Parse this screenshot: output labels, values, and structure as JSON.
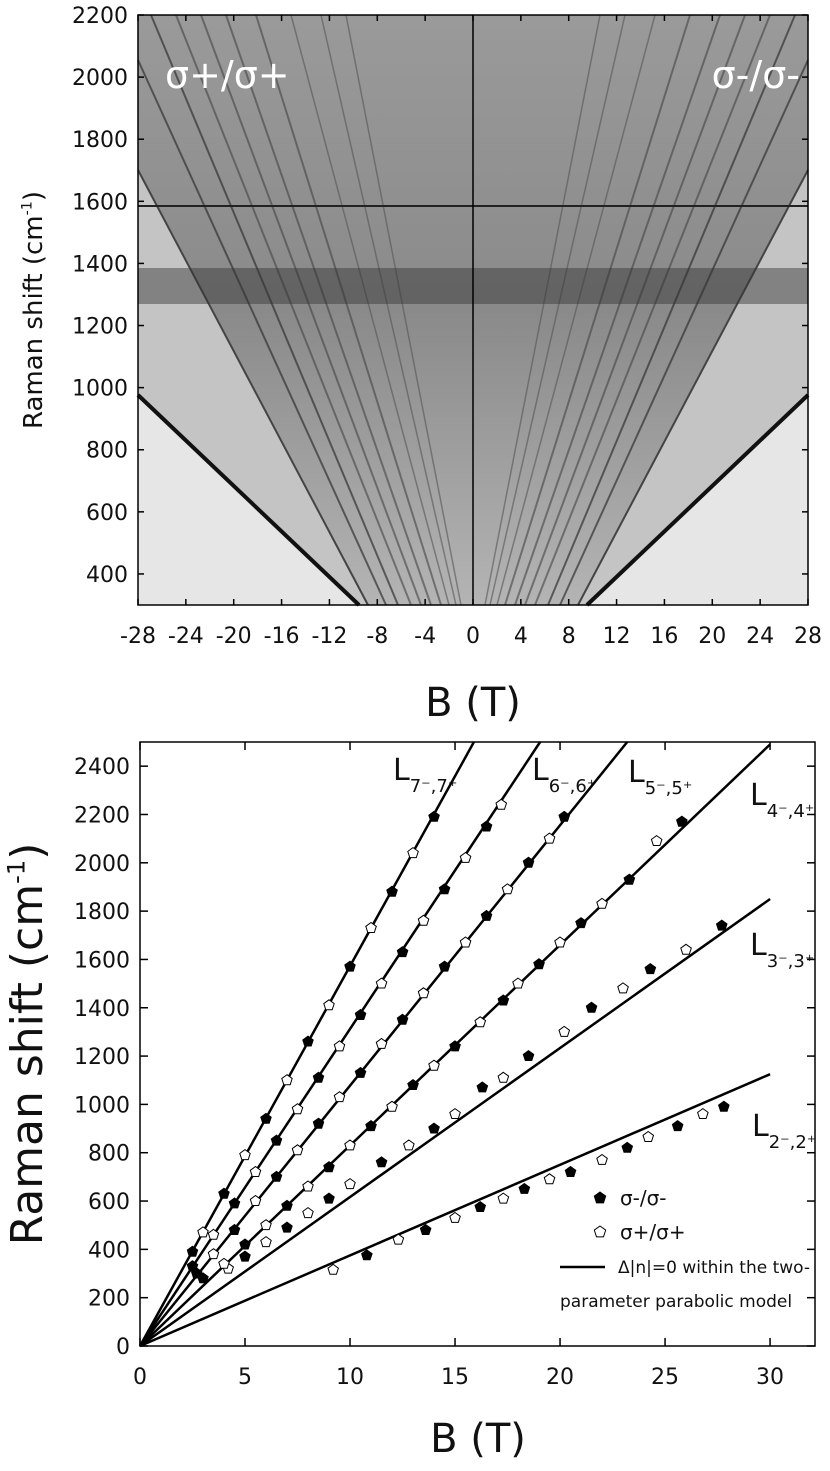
{
  "chart_data": [
    {
      "type": "image",
      "annotations": [
        "σ+/σ+",
        "σ-/σ-"
      ],
      "xlabel": "B (T)",
      "ylabel": "Raman shift (cm",
      "ylabel_sup": "-1",
      "ylabel_end": ")",
      "xlim": [
        -28,
        28
      ],
      "ylim": [
        300,
        2200
      ],
      "xticks": [
        -28,
        -24,
        -20,
        -16,
        -12,
        -8,
        -4,
        0,
        4,
        8,
        12,
        16,
        20,
        24,
        28
      ],
      "yticks": [
        400,
        600,
        800,
        1000,
        1200,
        1400,
        1600,
        1800,
        2000,
        2200
      ]
    },
    {
      "type": "line_scatter",
      "xlabel": "B (T)",
      "ylabel": "Raman shift (cm",
      "ylabel_sup": "-1",
      "ylabel_end": ")",
      "xlim": [
        0,
        32.14
      ],
      "ylim": [
        0,
        2500
      ],
      "xticks": [
        0,
        5,
        10,
        15,
        20,
        25,
        30
      ],
      "yticks": [
        0,
        200,
        400,
        600,
        800,
        1000,
        1200,
        1400,
        1600,
        1800,
        2000,
        2200,
        2400
      ],
      "lines": [
        {
          "label": "L",
          "label_sub": "7⁻,7⁺",
          "color": "#000000",
          "x": [
            0,
            15.9
          ],
          "values": [
            0,
            2500
          ]
        },
        {
          "label": "L",
          "label_sub": "6⁻,6⁺",
          "color": "#000000",
          "x": [
            0,
            19.05
          ],
          "values": [
            0,
            2500
          ]
        },
        {
          "label": "L",
          "label_sub": "5⁻,5⁺",
          "color": "#000000",
          "x": [
            0,
            23.2
          ],
          "values": [
            0,
            2500
          ]
        },
        {
          "label": "L",
          "label_sub": "4⁻,4⁺",
          "color": "#000000",
          "x": [
            0,
            30
          ],
          "values": [
            0,
            2490
          ]
        },
        {
          "label": "L",
          "label_sub": "3⁻,3⁺",
          "color": "#000000",
          "x": [
            0,
            30
          ],
          "values": [
            0,
            1850
          ]
        },
        {
          "label": "L",
          "label_sub": "2⁻,2⁺",
          "color": "#000000",
          "x": [
            0,
            30
          ],
          "values": [
            0,
            1125
          ]
        }
      ],
      "line_legend": [
        "Δ|n|=0 within the two-",
        "parameter parabolic model"
      ],
      "series": [
        {
          "name": "σ-/σ-",
          "color": "#000000",
          "filled": true,
          "x": [
            10.8,
            13.6,
            16.2,
            18.3,
            20.5,
            23.2,
            25.6,
            27.8,
            5,
            7,
            9,
            11.5,
            14,
            16.3,
            18.5,
            21.5,
            24.3,
            27.7,
            3,
            5,
            7,
            9,
            11,
            13,
            15,
            17.3,
            19,
            21,
            23.3,
            25.8,
            2.7,
            4.5,
            6.5,
            8.5,
            10.5,
            12.5,
            14.5,
            16.5,
            18.5,
            20.2,
            2.5,
            4.5,
            6.5,
            8.5,
            10.5,
            12.5,
            14.5,
            16.5,
            2.5,
            4,
            6,
            8,
            10,
            12,
            14
          ],
          "values": [
            375,
            480,
            575,
            650,
            720,
            820,
            910,
            990,
            370,
            490,
            610,
            760,
            900,
            1070,
            1200,
            1400,
            1560,
            1740,
            280,
            420,
            580,
            740,
            910,
            1080,
            1240,
            1430,
            1580,
            1750,
            1930,
            2170,
            300,
            480,
            700,
            920,
            1130,
            1350,
            1570,
            1780,
            2000,
            2190,
            330,
            590,
            850,
            1110,
            1370,
            1630,
            1890,
            2150,
            390,
            630,
            940,
            1260,
            1570,
            1880,
            2190
          ]
        },
        {
          "name": "σ+/σ+",
          "color": "#000000",
          "filled": false,
          "x": [
            9.2,
            12.3,
            15,
            17.3,
            19.5,
            22,
            24.2,
            26.8,
            4.2,
            6,
            8,
            10,
            12.8,
            15,
            17.3,
            20.2,
            23,
            26,
            4,
            6,
            8,
            10,
            12,
            14,
            16.2,
            18,
            20,
            22,
            24.6,
            3.5,
            5.5,
            7.5,
            9.5,
            11.5,
            13.5,
            15.5,
            17.5,
            19.5,
            3.5,
            5.5,
            7.5,
            9.5,
            11.5,
            13.5,
            15.5,
            17.2,
            3,
            5,
            7,
            9,
            11,
            13
          ],
          "values": [
            315,
            440,
            530,
            610,
            690,
            770,
            865,
            960,
            320,
            430,
            550,
            670,
            830,
            960,
            1110,
            1300,
            1480,
            1640,
            340,
            500,
            660,
            830,
            990,
            1160,
            1340,
            1500,
            1670,
            1830,
            2090,
            380,
            600,
            810,
            1030,
            1250,
            1460,
            1670,
            1890,
            2100,
            460,
            720,
            980,
            1240,
            1500,
            1760,
            2020,
            2240,
            470,
            790,
            1100,
            1410,
            1730,
            2040
          ]
        }
      ]
    }
  ]
}
